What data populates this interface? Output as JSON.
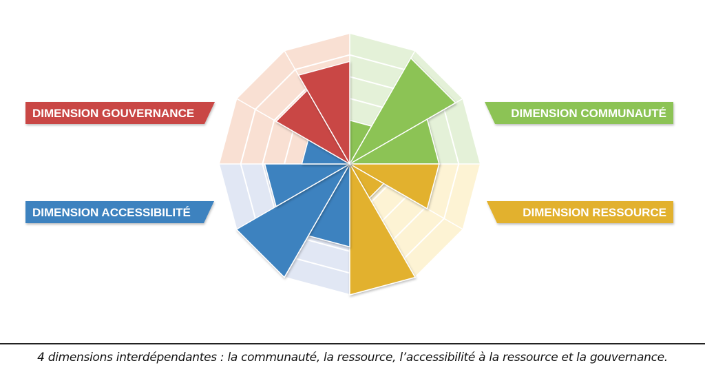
{
  "chart_data": {
    "type": "polar-area",
    "title": "",
    "rings": 6,
    "max_value": 6,
    "sectors": [
      {
        "dimension": "communaute",
        "value": 2.0
      },
      {
        "dimension": "communaute",
        "value": 5.6
      },
      {
        "dimension": "communaute",
        "value": 4.1
      },
      {
        "dimension": "ressource",
        "value": 4.1
      },
      {
        "dimension": "ressource",
        "value": 1.8
      },
      {
        "dimension": "ressource",
        "value": 6.0
      },
      {
        "dimension": "accessibilite",
        "value": 3.8
      },
      {
        "dimension": "accessibilite",
        "value": 6.0
      },
      {
        "dimension": "accessibilite",
        "value": 3.9
      },
      {
        "dimension": "accessibilite",
        "value": 2.2
      },
      {
        "dimension": "gouvernance",
        "value": 3.9
      },
      {
        "dimension": "gouvernance",
        "value": 4.7
      }
    ],
    "dimensions": [
      {
        "key": "gouvernance",
        "label": "DIMENSION GOUVERNANCE",
        "color": "#c94645",
        "bg": "#f9e0d3"
      },
      {
        "key": "communaute",
        "label": "DIMENSION COMMUNAUTÉ",
        "color": "#8cc354",
        "bg": "#e4f1d8"
      },
      {
        "key": "accessibilite",
        "label": "DIMENSION ACCESSIBILITÉ",
        "color": "#3e82bf",
        "bg": "#e1e7f4"
      },
      {
        "key": "ressource",
        "label": "DIMENSION RESSOURCE",
        "color": "#e2b12d",
        "bg": "#fdf3d4"
      }
    ]
  },
  "caption": "4 dimensions interdépendantes : la communauté, la ressource, l’accessibilité à la ressource et la gouvernance."
}
